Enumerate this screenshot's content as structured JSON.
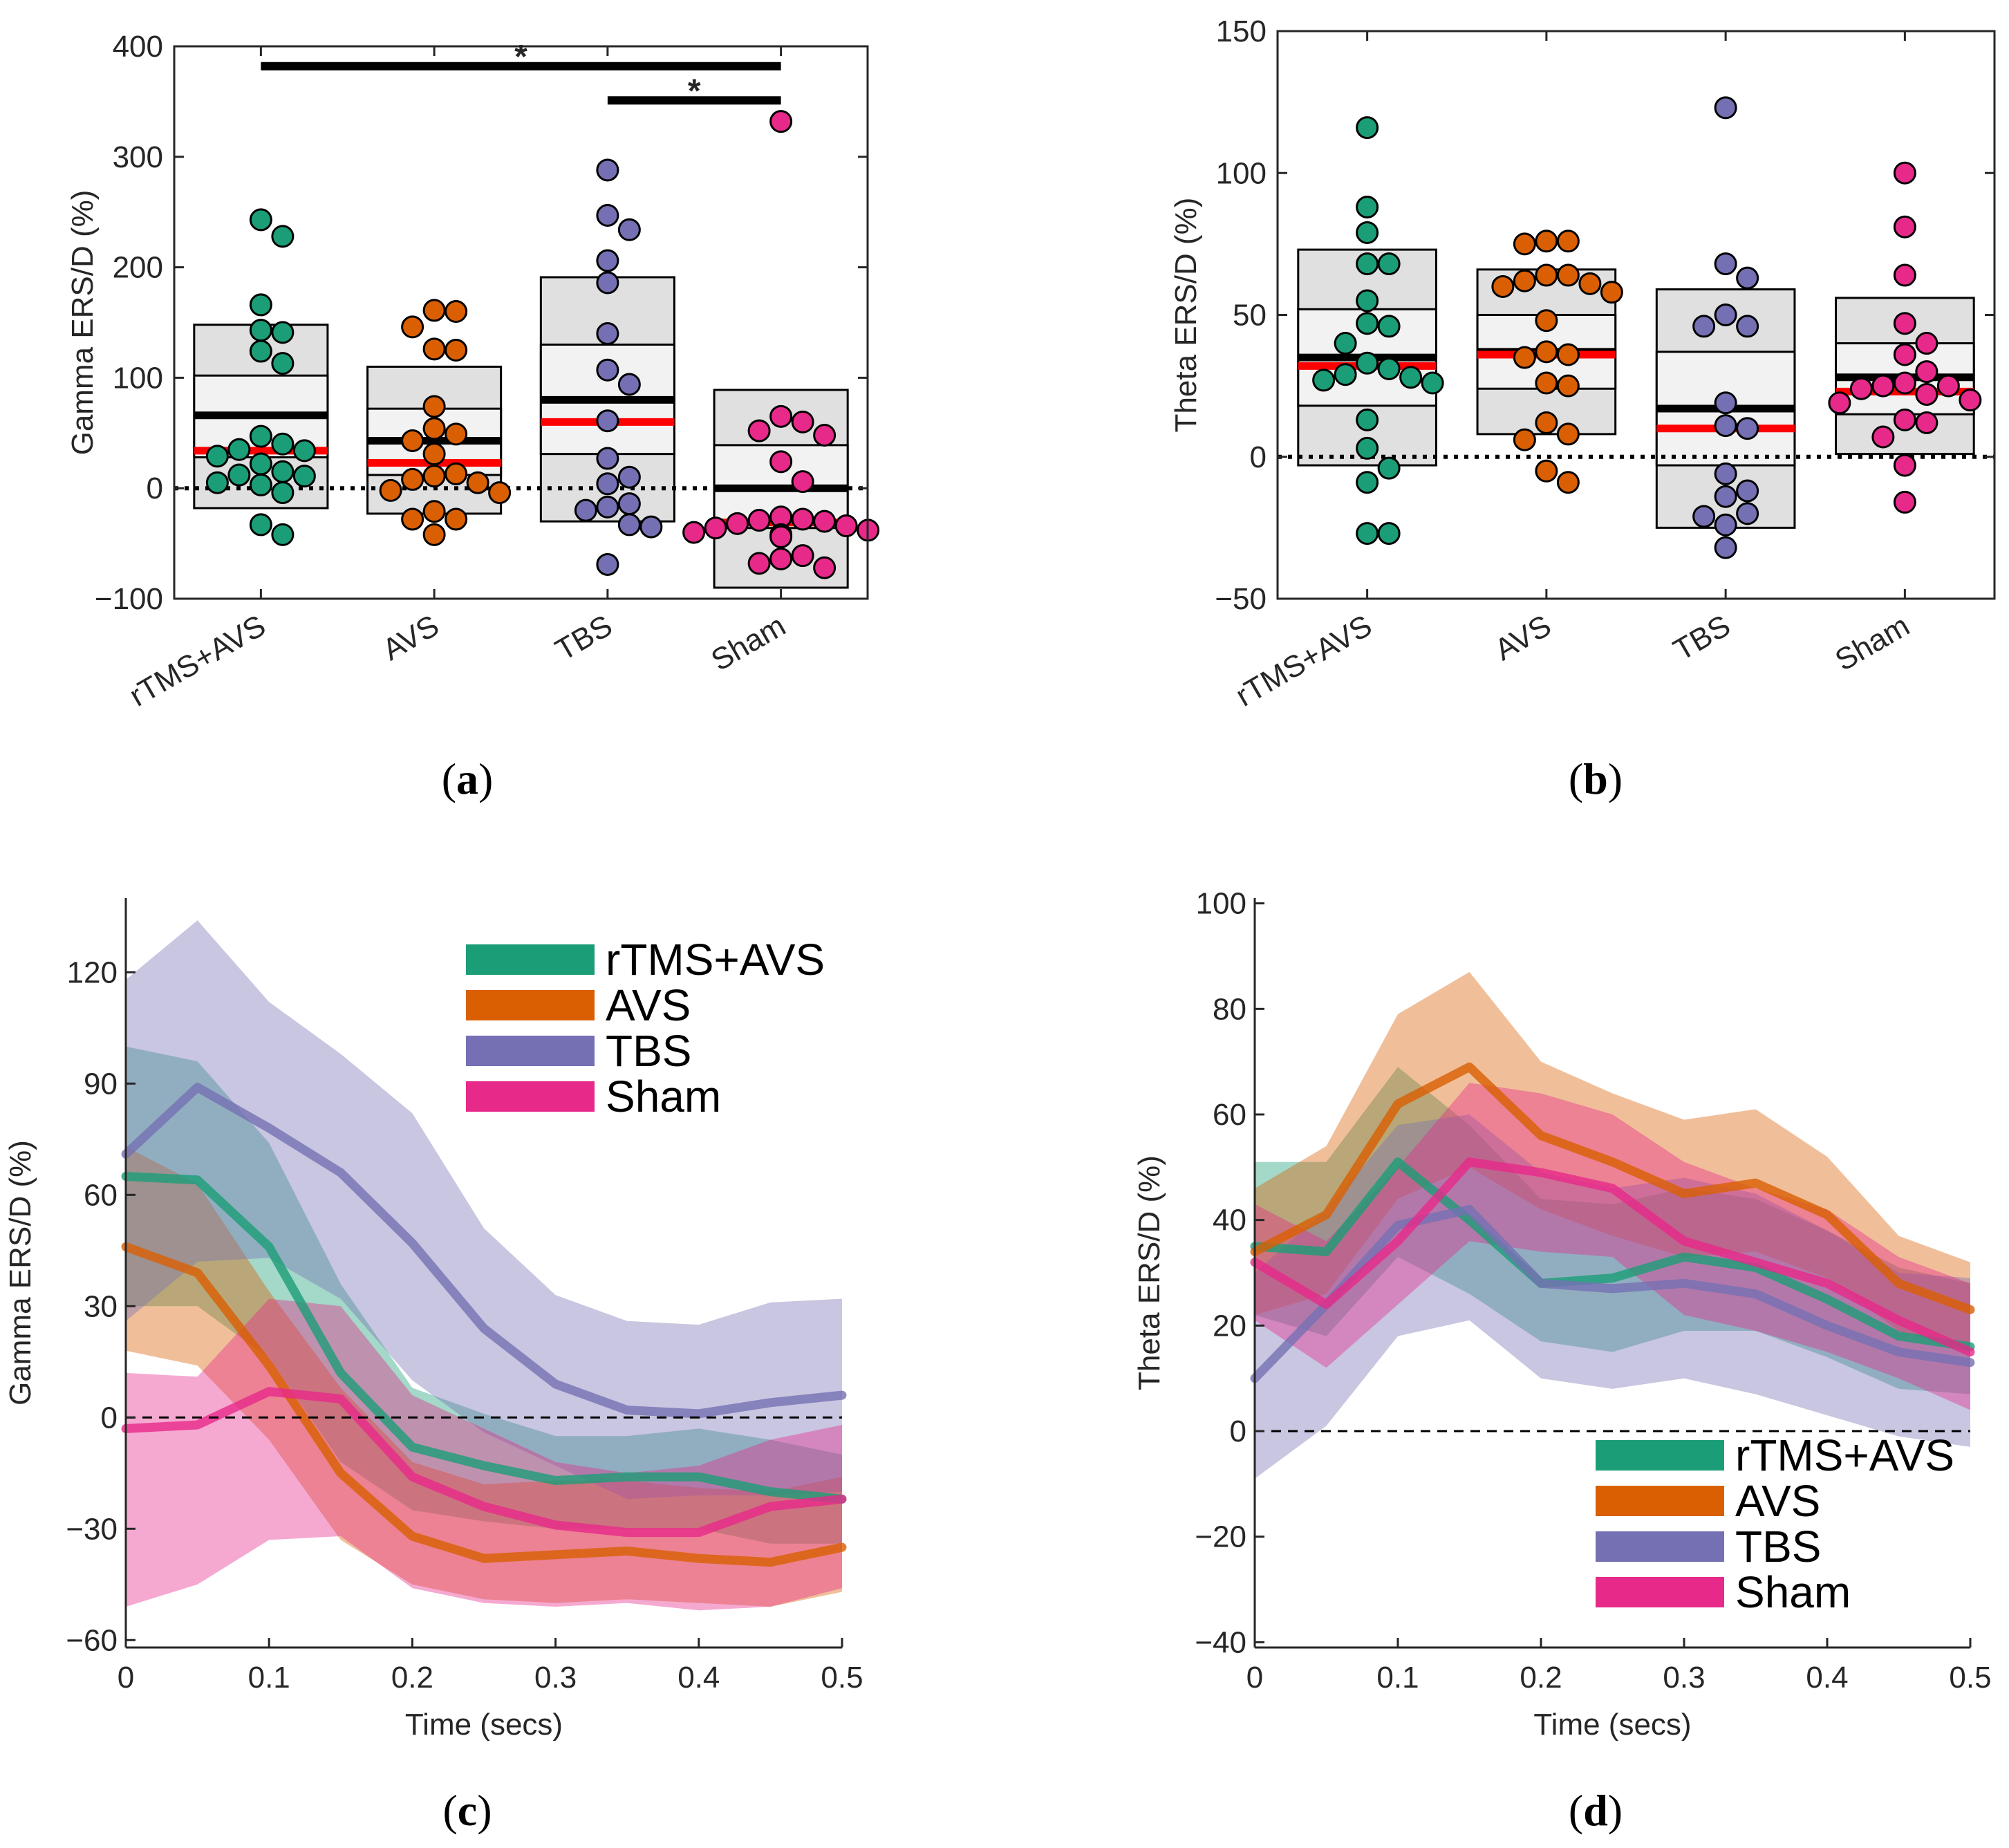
{
  "groups": [
    "rTMS+AVS",
    "AVS",
    "TBS",
    "Sham"
  ],
  "colors": {
    "rTMS+AVS": "#1b9e77",
    "AVS": "#d95f02",
    "TBS": "#7570b3",
    "Sham": "#e7298a",
    "median": "#000000",
    "mean": "#ff0000",
    "box_outer": "#e0e0e0",
    "box_inner": "#f2f2f2"
  },
  "panel_labels": [
    {
      "open": "(",
      "letter": "a",
      "close": ")"
    },
    {
      "open": "(",
      "letter": "b",
      "close": ")"
    },
    {
      "open": "(",
      "letter": "c",
      "close": ")"
    },
    {
      "open": "(",
      "letter": "d",
      "close": ")"
    }
  ],
  "chart_data": [
    {
      "id": "a",
      "type": "scatter",
      "title": "",
      "ylabel": "Gamma ERS/D (%)",
      "xlabel": "",
      "ylim": [
        -100,
        400
      ],
      "yticks": [
        -100,
        0,
        100,
        200,
        300,
        400
      ],
      "ytick_labels": [
        "−100",
        "0",
        "100",
        "200",
        "300",
        "400"
      ],
      "categories": [
        "rTMS+AVS",
        "AVS",
        "TBS",
        "Sham"
      ],
      "reference_line": 0,
      "boxes": [
        {
          "group": "rTMS+AVS",
          "outer": [
            -18,
            148
          ],
          "inner": [
            28,
            102
          ],
          "median": 66,
          "mean": 34
        },
        {
          "group": "AVS",
          "outer": [
            -23,
            110
          ],
          "inner": [
            12,
            72
          ],
          "median": 43,
          "mean": 23
        },
        {
          "group": "TBS",
          "outer": [
            -30,
            191
          ],
          "inner": [
            31,
            130
          ],
          "median": 80,
          "mean": 60
        },
        {
          "group": "Sham",
          "outer": [
            -90,
            89
          ],
          "inner": [
            -36,
            39
          ],
          "median": 0,
          "mean": -31
        }
      ],
      "points": [
        {
          "group": "rTMS+AVS",
          "values": [
            243,
            228,
            166,
            143,
            141,
            124,
            113,
            47,
            40,
            35,
            34,
            29,
            22,
            15,
            12,
            11,
            5,
            3,
            -4,
            -33,
            -42
          ]
        },
        {
          "group": "AVS",
          "values": [
            161,
            160,
            146,
            126,
            125,
            74,
            54,
            49,
            43,
            31,
            13,
            11,
            8,
            5,
            -2,
            -4,
            -21,
            -28,
            -28,
            -42
          ]
        },
        {
          "group": "TBS",
          "values": [
            288,
            247,
            234,
            206,
            186,
            140,
            107,
            94,
            61,
            27,
            10,
            4,
            -14,
            -17,
            -20,
            -33,
            -35,
            -69
          ]
        },
        {
          "group": "Sham",
          "values": [
            332,
            65,
            60,
            52,
            48,
            24,
            6,
            -26,
            -28,
            -29,
            -30,
            -32,
            -34,
            -36,
            -38,
            -40,
            -42,
            -44,
            -61,
            -64,
            -68,
            -72
          ]
        }
      ],
      "significance": [
        {
          "from": "rTMS+AVS",
          "to": "Sham",
          "y": 382,
          "label": "*"
        },
        {
          "from": "TBS",
          "to": "Sham",
          "y": 351,
          "label": "*"
        }
      ]
    },
    {
      "id": "b",
      "type": "scatter",
      "title": "",
      "ylabel": "Theta ERS/D (%)",
      "xlabel": "",
      "ylim": [
        -50,
        150
      ],
      "yticks": [
        -50,
        0,
        50,
        100,
        150
      ],
      "ytick_labels": [
        "−50",
        "0",
        "50",
        "100",
        "150"
      ],
      "categories": [
        "rTMS+AVS",
        "AVS",
        "TBS",
        "Sham"
      ],
      "reference_line": 0,
      "boxes": [
        {
          "group": "rTMS+AVS",
          "outer": [
            -3,
            73
          ],
          "inner": [
            18,
            52
          ],
          "median": 35,
          "mean": 32
        },
        {
          "group": "AVS",
          "outer": [
            8,
            66
          ],
          "inner": [
            24,
            50
          ],
          "median": 37,
          "mean": 36
        },
        {
          "group": "TBS",
          "outer": [
            -25,
            59
          ],
          "inner": [
            -3,
            37
          ],
          "median": 17,
          "mean": 10
        },
        {
          "group": "Sham",
          "outer": [
            1,
            56
          ],
          "inner": [
            15,
            40
          ],
          "median": 28,
          "mean": 23
        }
      ],
      "points": [
        {
          "group": "rTMS+AVS",
          "values": [
            116,
            88,
            79,
            68,
            68,
            55,
            47,
            46,
            40,
            33,
            31,
            29,
            28,
            27,
            26,
            13,
            3,
            -4,
            -9,
            -27,
            -27
          ]
        },
        {
          "group": "AVS",
          "values": [
            76,
            76,
            75,
            64,
            64,
            62,
            61,
            60,
            58,
            48,
            37,
            36,
            35,
            26,
            25,
            12,
            8,
            6,
            -5,
            -9
          ]
        },
        {
          "group": "TBS",
          "values": [
            123,
            68,
            63,
            50,
            46,
            46,
            19,
            11,
            10,
            -6,
            -12,
            -14,
            -20,
            -21,
            -24,
            -32
          ]
        },
        {
          "group": "Sham",
          "values": [
            100,
            81,
            64,
            47,
            40,
            36,
            30,
            26,
            25,
            25,
            24,
            22,
            20,
            19,
            13,
            12,
            7,
            -3,
            -16
          ]
        }
      ]
    },
    {
      "id": "c",
      "type": "line",
      "title": "",
      "xlabel": "Time (secs)",
      "ylabel": "Gamma ERS/D (%)",
      "xlim": [
        0,
        0.5
      ],
      "ylim": [
        -62,
        140
      ],
      "xticks": [
        0,
        0.1,
        0.2,
        0.3,
        0.4,
        0.5
      ],
      "xtick_labels": [
        "0",
        "0.1",
        "0.2",
        "0.3",
        "0.4",
        "0.5"
      ],
      "yticks": [
        -60,
        -30,
        0,
        30,
        60,
        90,
        120
      ],
      "ytick_labels": [
        "−60",
        "−30",
        "0",
        "30",
        "60",
        "90",
        "120"
      ],
      "x": [
        0,
        0.05,
        0.1,
        0.15,
        0.2,
        0.25,
        0.3,
        0.35,
        0.4,
        0.45,
        0.5
      ],
      "reference_line": 0,
      "legend": {
        "position": "top-right",
        "entries": [
          "rTMS+AVS",
          "AVS",
          "TBS",
          "Sham"
        ]
      },
      "series": [
        {
          "name": "rTMS+AVS",
          "mean": [
            65,
            64,
            46,
            12,
            -8,
            -13,
            -17,
            -16,
            -16,
            -20,
            -22
          ],
          "upper": [
            100,
            96,
            74,
            36,
            8,
            1,
            -5,
            -5,
            -3,
            -6,
            -10
          ],
          "lower": [
            30,
            30,
            16,
            -12,
            -25,
            -28,
            -30,
            -30,
            -30,
            -34,
            -34
          ]
        },
        {
          "name": "AVS",
          "mean": [
            46,
            39,
            14,
            -15,
            -32,
            -38,
            -37,
            -36,
            -38,
            -39,
            -35
          ],
          "upper": [
            73,
            63,
            34,
            8,
            -12,
            -18,
            -17,
            -17,
            -19,
            -20,
            -16
          ],
          "lower": [
            18,
            14,
            -6,
            -33,
            -45,
            -49,
            -50,
            -49,
            -50,
            -51,
            -47
          ]
        },
        {
          "name": "TBS",
          "mean": [
            71,
            89,
            78,
            66,
            47,
            24,
            9,
            2,
            1,
            4,
            6
          ],
          "upper": [
            118,
            134,
            112,
            98,
            82,
            51,
            33,
            26,
            25,
            31,
            32
          ],
          "lower": [
            26,
            42,
            43,
            32,
            10,
            -4,
            -13,
            -22,
            -21,
            -21,
            -20
          ]
        },
        {
          "name": "Sham",
          "mean": [
            -3,
            -2,
            7,
            5,
            -16,
            -24,
            -29,
            -31,
            -31,
            -24,
            -22
          ],
          "upper": [
            12,
            11,
            32,
            30,
            6,
            -3,
            -12,
            -15,
            -13,
            -6,
            -2
          ],
          "lower": [
            -51,
            -45,
            -33,
            -32,
            -46,
            -50,
            -51,
            -50,
            -52,
            -51,
            -46
          ]
        }
      ]
    },
    {
      "id": "d",
      "type": "line",
      "title": "",
      "xlabel": "Time (secs)",
      "ylabel": "Theta ERS/D (%)",
      "xlim": [
        0,
        0.5
      ],
      "ylim": [
        -41,
        101
      ],
      "xticks": [
        0,
        0.1,
        0.2,
        0.3,
        0.4,
        0.5
      ],
      "xtick_labels": [
        "0",
        "0.1",
        "0.2",
        "0.3",
        "0.4",
        "0.5"
      ],
      "yticks": [
        -40,
        -20,
        0,
        20,
        40,
        60,
        80,
        100
      ],
      "ytick_labels": [
        "−40",
        "−20",
        "0",
        "20",
        "40",
        "60",
        "80",
        "100"
      ],
      "x": [
        0,
        0.05,
        0.1,
        0.15,
        0.2,
        0.25,
        0.3,
        0.35,
        0.4,
        0.45,
        0.5
      ],
      "reference_line": 0,
      "legend": {
        "position": "bottom-right",
        "entries": [
          "rTMS+AVS",
          "AVS",
          "TBS",
          "Sham"
        ]
      },
      "series": [
        {
          "name": "rTMS+AVS",
          "mean": [
            35,
            34,
            51,
            40,
            28,
            29,
            33,
            31,
            25,
            18,
            16
          ],
          "upper": [
            51,
            51,
            69,
            58,
            44,
            43,
            46,
            44,
            38,
            31,
            28
          ],
          "lower": [
            22,
            18,
            33,
            26,
            17,
            15,
            19,
            19,
            14,
            8,
            7
          ]
        },
        {
          "name": "AVS",
          "mean": [
            34,
            41,
            62,
            69,
            56,
            51,
            45,
            47,
            41,
            28,
            23
          ],
          "upper": [
            46,
            54,
            79,
            87,
            70,
            64,
            59,
            61,
            52,
            37,
            32
          ],
          "lower": [
            22,
            26,
            44,
            50,
            42,
            37,
            33,
            34,
            29,
            19,
            15
          ]
        },
        {
          "name": "TBS",
          "mean": [
            10,
            24,
            39,
            42,
            28,
            27,
            28,
            26,
            20,
            15,
            13
          ],
          "upper": [
            30,
            42,
            58,
            60,
            49,
            46,
            48,
            45,
            38,
            30,
            29
          ],
          "lower": [
            -9,
            1,
            18,
            21,
            10,
            8,
            10,
            7,
            3,
            -1,
            -3
          ]
        },
        {
          "name": "Sham",
          "mean": [
            32,
            24,
            36,
            51,
            49,
            46,
            36,
            32,
            28,
            21,
            15
          ],
          "upper": [
            43,
            36,
            50,
            66,
            64,
            60,
            51,
            46,
            42,
            33,
            28
          ],
          "lower": [
            21,
            12,
            24,
            36,
            34,
            33,
            22,
            19,
            15,
            10,
            4
          ]
        }
      ]
    }
  ]
}
